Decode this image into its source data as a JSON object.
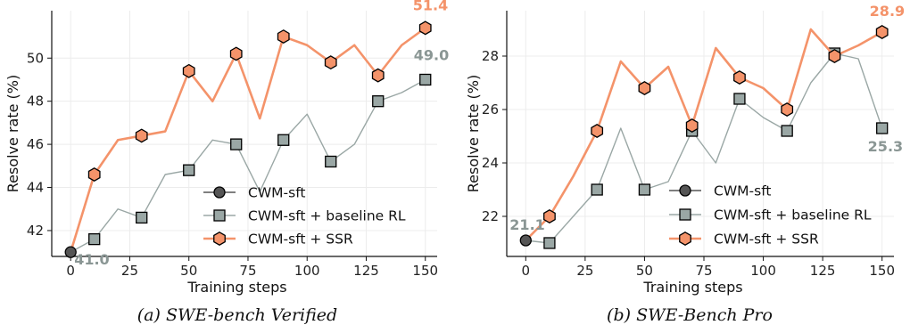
{
  "chart_data": [
    {
      "type": "line",
      "caption": "(a) SWE-bench Verified",
      "xlabel": "Training steps",
      "ylabel": "Resolve rate (%)",
      "xlim": [
        -8,
        155
      ],
      "ylim": [
        40.8,
        52.2
      ],
      "xticks": [
        0,
        25,
        50,
        75,
        100,
        125,
        150
      ],
      "yticks": [
        42,
        44,
        46,
        48,
        50
      ],
      "grid": true,
      "legend_position": "bottom-right",
      "series": [
        {
          "name": "CWM-sft",
          "color": "#555555",
          "marker": "circle",
          "x": [
            0
          ],
          "y": [
            41.0
          ],
          "marker_x": [
            0
          ]
        },
        {
          "name": "CWM-sft + baseline RL",
          "color": "#9aa7a5",
          "marker": "square",
          "x": [
            0,
            10,
            20,
            30,
            40,
            50,
            60,
            70,
            80,
            90,
            100,
            110,
            120,
            130,
            140,
            150
          ],
          "y": [
            41.0,
            41.6,
            43.0,
            42.6,
            44.6,
            44.8,
            46.2,
            46.0,
            43.8,
            46.2,
            47.4,
            45.2,
            46.0,
            48.0,
            48.4,
            49.0
          ],
          "marker_x": [
            10,
            30,
            50,
            70,
            90,
            110,
            130,
            150
          ]
        },
        {
          "name": "CWM-sft + SSR",
          "color": "#f4936a",
          "marker": "hexagon",
          "x": [
            0,
            10,
            20,
            30,
            40,
            50,
            60,
            70,
            80,
            90,
            100,
            110,
            120,
            130,
            140,
            150
          ],
          "y": [
            41.0,
            44.6,
            46.2,
            46.4,
            46.6,
            49.4,
            48.0,
            50.2,
            47.2,
            51.0,
            50.6,
            49.8,
            50.6,
            49.2,
            50.6,
            51.4
          ],
          "marker_x": [
            10,
            30,
            50,
            70,
            90,
            110,
            130,
            150
          ]
        }
      ],
      "annotations": [
        {
          "text": "41.0",
          "x": 0,
          "y": 41.0,
          "color": "#8a9694"
        },
        {
          "text": "49.0",
          "x": 150,
          "y": 49.0,
          "color": "#8a9694"
        },
        {
          "text": "51.4",
          "x": 150,
          "y": 51.4,
          "color": "#f4936a"
        }
      ]
    },
    {
      "type": "line",
      "caption": "(b) SWE-Bench Pro",
      "xlabel": "Training steps",
      "ylabel": "Resolve rate (%)",
      "xlim": [
        -8,
        155
      ],
      "ylim": [
        20.5,
        29.7
      ],
      "xticks": [
        0,
        25,
        50,
        75,
        100,
        125,
        150
      ],
      "yticks": [
        22,
        24,
        26,
        28
      ],
      "grid": true,
      "legend_position": "bottom-right",
      "series": [
        {
          "name": "CWM-sft",
          "color": "#555555",
          "marker": "circle",
          "x": [
            0
          ],
          "y": [
            21.1
          ],
          "marker_x": [
            0
          ]
        },
        {
          "name": "CWM-sft + baseline RL",
          "color": "#9aa7a5",
          "marker": "square",
          "x": [
            0,
            10,
            20,
            30,
            40,
            50,
            60,
            70,
            80,
            90,
            100,
            110,
            120,
            130,
            140,
            150
          ],
          "y": [
            21.1,
            21.0,
            22.0,
            23.0,
            25.3,
            23.0,
            23.3,
            25.2,
            24.0,
            26.4,
            25.7,
            25.2,
            27.0,
            28.1,
            27.9,
            25.3
          ],
          "marker_x": [
            10,
            30,
            50,
            70,
            90,
            110,
            130,
            150
          ]
        },
        {
          "name": "CWM-sft + SSR",
          "color": "#f4936a",
          "marker": "hexagon",
          "x": [
            0,
            10,
            20,
            30,
            40,
            50,
            60,
            70,
            80,
            90,
            100,
            110,
            120,
            130,
            140,
            150
          ],
          "y": [
            21.1,
            22.0,
            23.5,
            25.2,
            27.8,
            26.8,
            27.6,
            25.4,
            28.3,
            27.2,
            26.8,
            26.0,
            29.0,
            28.0,
            28.4,
            28.9
          ],
          "marker_x": [
            10,
            30,
            50,
            70,
            90,
            110,
            130,
            150
          ]
        }
      ],
      "annotations": [
        {
          "text": "21.1",
          "x": 0,
          "y": 21.1,
          "color": "#8a9694"
        },
        {
          "text": "25.3",
          "x": 150,
          "y": 25.3,
          "color": "#8a9694"
        },
        {
          "text": "28.9",
          "x": 150,
          "y": 28.9,
          "color": "#f4936a"
        }
      ]
    }
  ]
}
